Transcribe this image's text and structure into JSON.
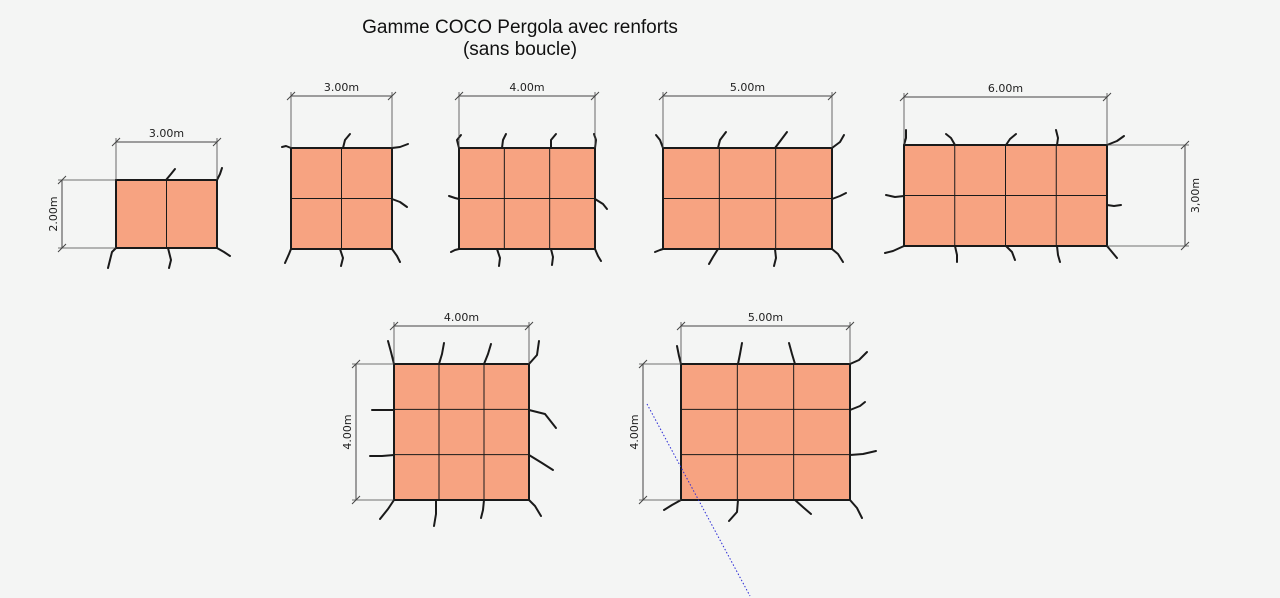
{
  "title": {
    "line1": "Gamme COCO Pergola avec renforts",
    "line2": "(sans boucle)"
  },
  "colors": {
    "panel_fill": "#f7a381",
    "outline": "#1a1a1a",
    "dimension_line": "#444444",
    "guide_line": "#2b2bd6",
    "background": "#f4f5f4"
  },
  "panels": [
    {
      "name": "panel-3x2",
      "cols": 2,
      "rows": 1,
      "top_label": "3.00m",
      "side_label": "2.00m",
      "side": "left"
    },
    {
      "name": "panel-3x3",
      "cols": 2,
      "rows": 2,
      "top_label": "3.00m"
    },
    {
      "name": "panel-4x3",
      "cols": 3,
      "rows": 2,
      "top_label": "4.00m"
    },
    {
      "name": "panel-5x3",
      "cols": 3,
      "rows": 2,
      "top_label": "5.00m"
    },
    {
      "name": "panel-6x3",
      "cols": 4,
      "rows": 2,
      "top_label": "6.00m",
      "side_label": "3,00m",
      "side": "right"
    },
    {
      "name": "panel-4x4",
      "cols": 3,
      "rows": 3,
      "top_label": "4.00m",
      "side_label": "4.00m",
      "side": "left"
    },
    {
      "name": "panel-5x4",
      "cols": 3,
      "rows": 3,
      "top_label": "5.00m",
      "side_label": "4.00m",
      "side": "left"
    }
  ]
}
